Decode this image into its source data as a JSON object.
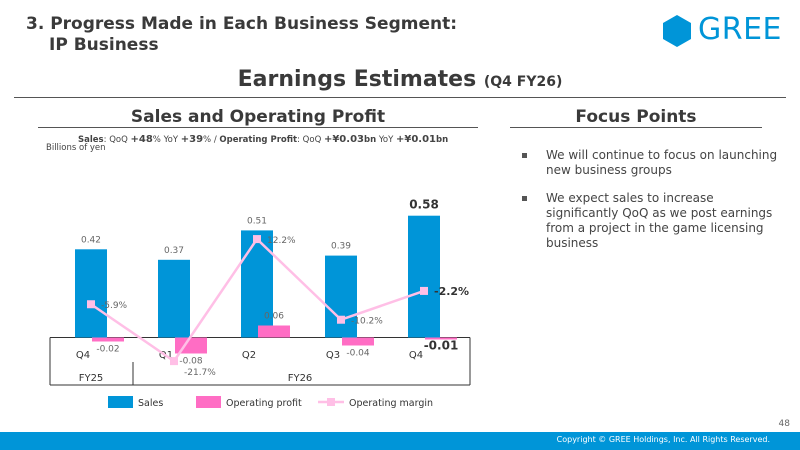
{
  "header": {
    "section_line1": "3. Progress Made in Each Business Segment:",
    "section_line2": "IP Business",
    "logo_text": "GREE",
    "logo_color": "#0095d8"
  },
  "page_title": "Earnings Estimates",
  "page_subtitle": "(Q4 FY26)",
  "left_panel": {
    "title": "Sales and Operating Profit",
    "summary": {
      "sales_label": "Sales",
      "qoq_label": "QoQ",
      "sales_qoq": "+48",
      "pct": "%",
      "yoy_label": "YoY",
      "sales_yoy": "+39",
      "op_label": "Operating Profit",
      "op_qoq": "+¥0.03",
      "op_yoy": "+¥0.01",
      "bn": "bn",
      "sep": "/"
    },
    "unit": "Billions of yen"
  },
  "chart_data": {
    "type": "bar",
    "categories": [
      "Q4",
      "Q1",
      "Q2",
      "Q3",
      "Q4"
    ],
    "fiscal_years": [
      "FY25",
      "FY26"
    ],
    "series": [
      {
        "name": "Sales",
        "type": "bar",
        "color": "#0095d8",
        "values": [
          0.42,
          0.37,
          0.51,
          0.39,
          0.58
        ],
        "labels": [
          "0.42",
          "0.37",
          "0.51",
          "0.39",
          "0.58"
        ]
      },
      {
        "name": "Operating profit",
        "type": "bar",
        "color": "#ff6dc4",
        "values": [
          -0.02,
          -0.08,
          0.06,
          -0.04,
          -0.01
        ],
        "labels": [
          "-0.02",
          "-0.08",
          "0.06",
          "-0.04",
          "-0.01"
        ]
      },
      {
        "name": "Operating margin",
        "type": "line",
        "color": "#ffbfe6",
        "values": [
          -5.9,
          -21.7,
          12.2,
          -10.2,
          -2.2
        ],
        "labels": [
          "-5.9%",
          "-21.7%",
          "12.2%",
          "-10.2%",
          "-2.2%"
        ]
      }
    ],
    "highlight_index": 4,
    "ylim": [
      -0.1,
      0.62
    ]
  },
  "right_panel": {
    "title": "Focus Points",
    "points": [
      "We will continue to focus on launching new business groups",
      "We expect sales to increase significantly QoQ as we post earnings from a project in the game licensing business"
    ]
  },
  "footer": {
    "page_number": "48",
    "copyright": "Copyright © GREE Holdings, Inc. All Rights Reserved.",
    "color": "#0095d8"
  }
}
